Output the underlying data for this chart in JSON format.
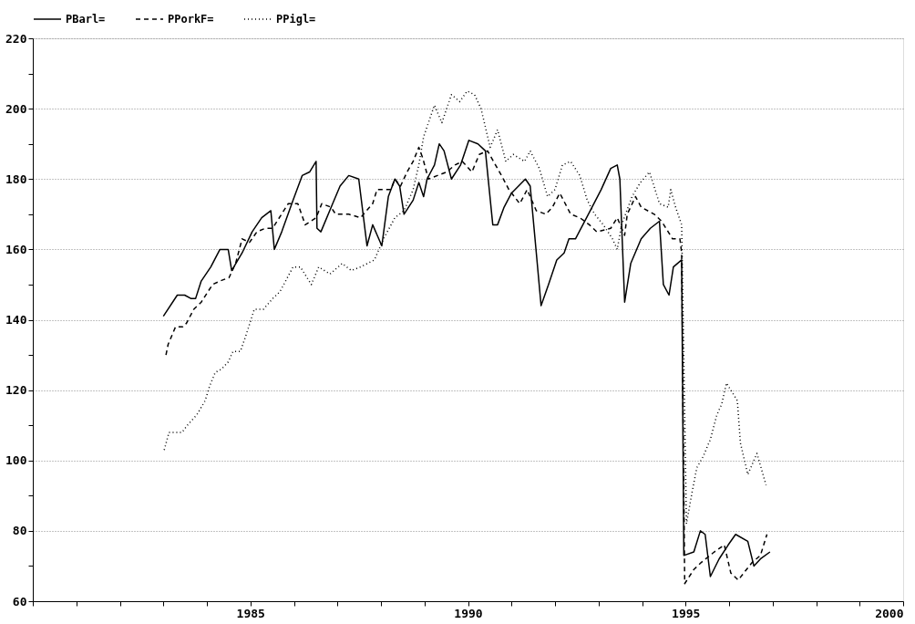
{
  "chart_data": {
    "type": "line",
    "xlim": [
      1980,
      2000
    ],
    "ylim": [
      60,
      220
    ],
    "xticks": [
      {
        "value": 1980,
        "label": null
      },
      {
        "value": 1981,
        "label": null
      },
      {
        "value": 1982,
        "label": null
      },
      {
        "value": 1983,
        "label": null
      },
      {
        "value": 1984,
        "label": null
      },
      1985,
      {
        "value": 1986,
        "label": null
      },
      {
        "value": 1987,
        "label": null
      },
      {
        "value": 1988,
        "label": null
      },
      {
        "value": 1989,
        "label": null
      },
      1990,
      {
        "value": 1991,
        "label": null
      },
      {
        "value": 1992,
        "label": null
      },
      {
        "value": 1993,
        "label": null
      },
      {
        "value": 1994,
        "label": null
      },
      1995,
      {
        "value": 1996,
        "label": null
      },
      {
        "value": 1997,
        "label": null
      },
      {
        "value": 1998,
        "label": null
      },
      {
        "value": 1999,
        "label": null
      },
      2000
    ],
    "yticks": [
      60,
      {
        "value": 70,
        "label": null
      },
      80,
      {
        "value": 90,
        "label": null
      },
      100,
      {
        "value": 110,
        "label": null
      },
      120,
      {
        "value": 130,
        "label": null
      },
      140,
      {
        "value": 150,
        "label": null
      },
      160,
      {
        "value": 170,
        "label": null
      },
      180,
      {
        "value": 190,
        "label": null
      },
      200,
      {
        "value": 210,
        "label": null
      },
      220
    ],
    "grid": "y",
    "legend": "top left",
    "marker": "none",
    "series": [
      {
        "name": "PBarl=",
        "color": "#000000",
        "line_style": "solid",
        "x": [
          1983.0,
          1983.32,
          1983.49,
          1983.64,
          1983.74,
          1983.87,
          1984.09,
          1984.3,
          1984.49,
          1984.57,
          1984.81,
          1985.04,
          1985.26,
          1985.47,
          1985.55,
          1985.72,
          1985.98,
          1986.19,
          1986.36,
          1986.51,
          1986.53,
          1986.62,
          1986.89,
          1987.06,
          1987.26,
          1987.49,
          1987.68,
          1987.81,
          1988.02,
          1988.17,
          1988.32,
          1988.43,
          1988.53,
          1988.74,
          1988.87,
          1988.98,
          1989.06,
          1989.23,
          1989.34,
          1989.45,
          1989.62,
          1989.83,
          1990.02,
          1990.23,
          1990.4,
          1990.57,
          1990.68,
          1990.83,
          1991.0,
          1991.32,
          1991.43,
          1991.57,
          1991.68,
          1991.85,
          1992.04,
          1992.21,
          1992.32,
          1992.47,
          1992.64,
          1992.81,
          1993.06,
          1993.28,
          1993.43,
          1993.49,
          1993.6,
          1993.74,
          1993.98,
          1994.19,
          1994.4,
          1994.49,
          1994.62,
          1994.72,
          1994.91,
          1994.96,
          1995.19,
          1995.34,
          1995.45,
          1995.57,
          1995.77,
          1995.98,
          1996.15,
          1996.43,
          1996.57,
          1996.72,
          1996.94
        ],
        "values": [
          141,
          147,
          147,
          146,
          146,
          151,
          155,
          160,
          160,
          154,
          159,
          165,
          169,
          171,
          160,
          165,
          174,
          181,
          182,
          185,
          166,
          165,
          173,
          178,
          181,
          180,
          161,
          167,
          161,
          175,
          180,
          178,
          170,
          174,
          179,
          175,
          180,
          184,
          190,
          188,
          180,
          184,
          191,
          190,
          188,
          167,
          167,
          172,
          176,
          180,
          178,
          159,
          144,
          150,
          157,
          159,
          163,
          163,
          167,
          171,
          177,
          183,
          184,
          180,
          145,
          156,
          163,
          166,
          168,
          150,
          147,
          155,
          157,
          73,
          74,
          80,
          79,
          67,
          72,
          76,
          79,
          77,
          70,
          72,
          74
        ]
      },
      {
        "name": "PPorkF=",
        "color": "#000000",
        "line_style": "dashed",
        "x": [
          1983.06,
          1983.11,
          1983.28,
          1983.45,
          1983.53,
          1983.7,
          1983.87,
          1984.13,
          1984.3,
          1984.51,
          1984.66,
          1984.81,
          1984.98,
          1985.15,
          1985.34,
          1985.51,
          1985.87,
          1986.09,
          1986.26,
          1986.51,
          1986.64,
          1986.85,
          1986.96,
          1987.26,
          1987.53,
          1987.81,
          1987.91,
          1988.11,
          1988.23,
          1988.32,
          1988.45,
          1988.6,
          1988.74,
          1988.87,
          1988.96,
          1989.09,
          1989.3,
          1989.51,
          1989.7,
          1989.87,
          1990.09,
          1990.26,
          1990.45,
          1990.77,
          1990.94,
          1991.19,
          1991.36,
          1991.57,
          1991.79,
          1991.94,
          1992.11,
          1992.36,
          1992.57,
          1992.79,
          1992.96,
          1993.28,
          1993.43,
          1993.6,
          1993.66,
          1993.85,
          1993.98,
          1994.28,
          1994.45,
          1994.7,
          1994.87,
          1994.91,
          1994.98,
          1995.19,
          1995.36,
          1995.66,
          1995.89,
          1996.04,
          1996.21,
          1996.4,
          1996.53,
          1996.72,
          1996.87
        ],
        "values": [
          130,
          133,
          138,
          138,
          139,
          143,
          145,
          150,
          151,
          152,
          156,
          163,
          162,
          165,
          166,
          166,
          173,
          173,
          167,
          169,
          173,
          172,
          170,
          170,
          169,
          173,
          177,
          177,
          177,
          180,
          178,
          182,
          185,
          189,
          186,
          180,
          181,
          182,
          184,
          185,
          182,
          187,
          188,
          181,
          177,
          173,
          177,
          171,
          170,
          172,
          176,
          170,
          169,
          167,
          165,
          166,
          169,
          164,
          170,
          175,
          172,
          170,
          168,
          163,
          163,
          159,
          65,
          69,
          71,
          74,
          76,
          68,
          66,
          69,
          71,
          73,
          79
        ]
      },
      {
        "name": "PPigl=",
        "color": "#000000",
        "line_style": "dotted",
        "x": [
          1983.02,
          1983.13,
          1983.28,
          1983.43,
          1983.55,
          1983.77,
          1983.96,
          1984.06,
          1984.19,
          1984.34,
          1984.49,
          1984.6,
          1984.77,
          1984.91,
          1985.09,
          1985.3,
          1985.51,
          1985.68,
          1985.98,
          1986.15,
          1986.3,
          1986.4,
          1986.57,
          1986.83,
          1987.11,
          1987.32,
          1987.53,
          1987.85,
          1988.06,
          1988.32,
          1988.53,
          1988.74,
          1988.87,
          1988.98,
          1989.23,
          1989.4,
          1989.62,
          1989.81,
          1989.98,
          1990.15,
          1990.3,
          1990.51,
          1990.68,
          1990.87,
          1991.04,
          1991.3,
          1991.43,
          1991.64,
          1991.83,
          1992.0,
          1992.17,
          1992.36,
          1992.57,
          1992.74,
          1992.91,
          1993.11,
          1993.32,
          1993.43,
          1993.53,
          1993.77,
          1993.96,
          1994.17,
          1994.3,
          1994.4,
          1994.6,
          1994.66,
          1994.77,
          1994.91,
          1995.02,
          1995.15,
          1995.26,
          1995.4,
          1995.57,
          1995.72,
          1995.83,
          1995.94,
          1996.09,
          1996.19,
          1996.26,
          1996.43,
          1996.64,
          1996.85
        ],
        "values": [
          103,
          108,
          108,
          108,
          110,
          113,
          117,
          121,
          125,
          126,
          128,
          131,
          131,
          136,
          143,
          143,
          146,
          148,
          155,
          155,
          152,
          150,
          155,
          153,
          156,
          154,
          155,
          157,
          163,
          169,
          171,
          177,
          184,
          192,
          201,
          196,
          204,
          202,
          205,
          204,
          200,
          189,
          194,
          185,
          187,
          185,
          188,
          183,
          175,
          177,
          184,
          185,
          181,
          174,
          170,
          167,
          163,
          160,
          167,
          175,
          179,
          182,
          177,
          173,
          172,
          177,
          172,
          167,
          82,
          91,
          98,
          101,
          106,
          113,
          116,
          122,
          119,
          117,
          105,
          96,
          102,
          93
        ]
      }
    ]
  }
}
